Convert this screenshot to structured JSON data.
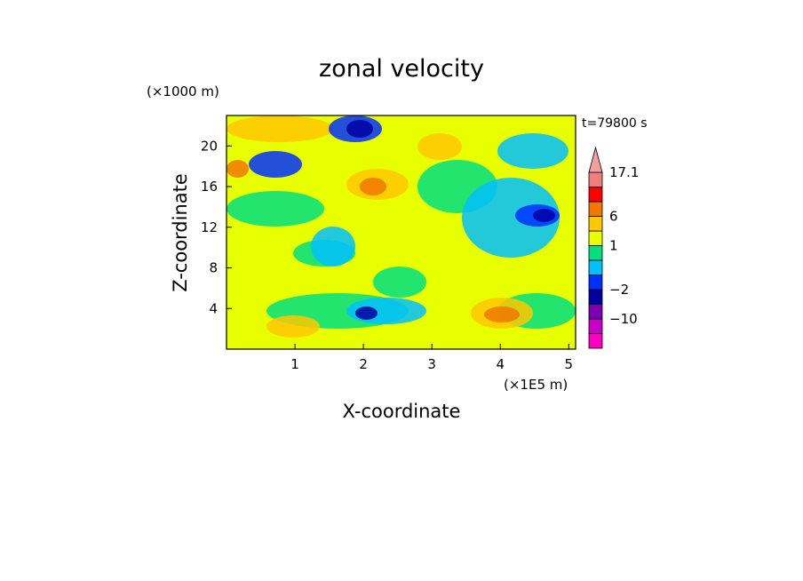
{
  "chart_data": {
    "type": "heatmap",
    "title": "zonal velocity",
    "xlabel": "X-coordinate",
    "ylabel": "Z-coordinate",
    "x_unit": "(×1E5 m)",
    "y_unit": "(×1000 m)",
    "time_label": "t=79800 s",
    "xlim": [
      0,
      5.1
    ],
    "ylim": [
      0,
      23
    ],
    "x_ticks": [
      "1",
      "2",
      "3",
      "4",
      "5"
    ],
    "x_tick_values": [
      1,
      2,
      3,
      4,
      5
    ],
    "y_ticks": [
      "4",
      "8",
      "12",
      "16",
      "20"
    ],
    "y_tick_values": [
      4,
      8,
      12,
      16,
      20
    ],
    "colorbar": {
      "levels": [
        -17.1,
        -14,
        -10,
        -6,
        -2,
        -1,
        0,
        1,
        2,
        6,
        10,
        14,
        17.1
      ],
      "labels": [
        "17.1",
        "6",
        "1",
        "−2",
        "−10"
      ],
      "label_values": [
        17.1,
        6,
        1,
        -2,
        -10
      ],
      "colors": [
        "#ff00c0",
        "#c800c8",
        "#7a00b0",
        "#0000a0",
        "#0030ff",
        "#00c0ff",
        "#00e080",
        "#e8ff00",
        "#ffc800",
        "#f07800",
        "#ff0000",
        "#f08080",
        "#f0a0a0"
      ]
    },
    "grid": false
  }
}
